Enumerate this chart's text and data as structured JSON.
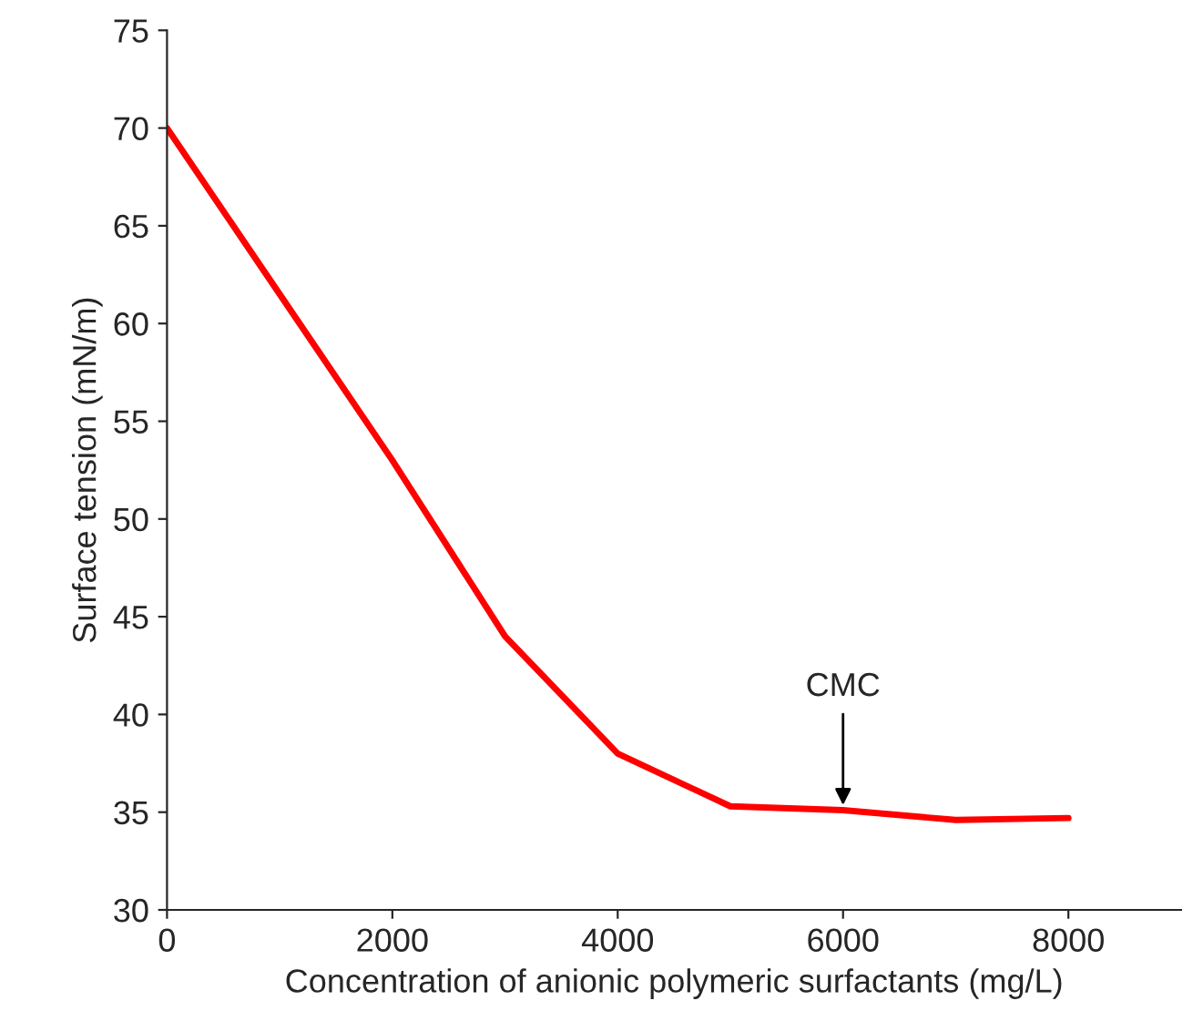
{
  "chart_data": {
    "type": "line",
    "xlabel": "Concentration of anionic polymeric surfactants (mg/L)",
    "ylabel": "Surface tension (mN/m)",
    "x": [
      0,
      1000,
      2000,
      3000,
      4000,
      5000,
      6000,
      7000,
      8000
    ],
    "series": [
      {
        "color": "#ff0000",
        "values": [
          70,
          61.5,
          53,
          44,
          38,
          35.3,
          35.1,
          34.6,
          34.7
        ]
      }
    ],
    "xlim": [
      0,
      9000
    ],
    "xticks": [
      0,
      2000,
      4000,
      6000,
      8000
    ],
    "ylim": [
      30,
      75
    ],
    "yticks": [
      30,
      35,
      40,
      45,
      50,
      55,
      60,
      65,
      70,
      75
    ],
    "grid": false,
    "marker": "none",
    "line_style": "solid",
    "annotations": [
      {
        "text": "CMC",
        "x": 6000,
        "y": 35.1
      }
    ]
  }
}
